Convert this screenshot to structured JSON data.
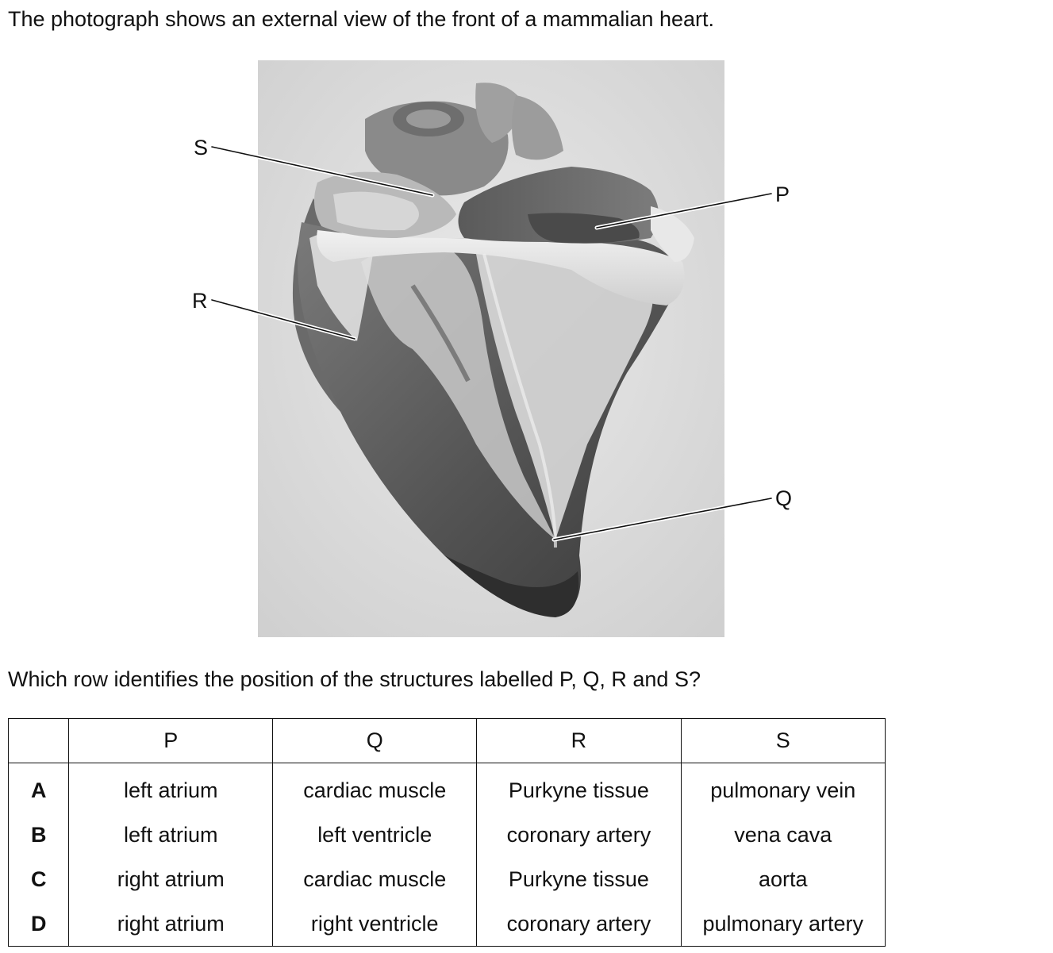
{
  "intro_text": "The photograph shows an external view of the front of a mammalian heart.",
  "figure": {
    "labels": {
      "P": "P",
      "Q": "Q",
      "R": "R",
      "S": "S"
    }
  },
  "question_text": "Which row identifies the position of the structures labelled P, Q, R and S?",
  "table": {
    "columns": [
      "P",
      "Q",
      "R",
      "S"
    ],
    "rows": [
      {
        "letter": "A",
        "P": "left atrium",
        "Q": "cardiac muscle",
        "R": "Purkyne tissue",
        "S": "pulmonary vein"
      },
      {
        "letter": "B",
        "P": "left atrium",
        "Q": "left ventricle",
        "R": "coronary artery",
        "S": "vena cava"
      },
      {
        "letter": "C",
        "P": "right atrium",
        "Q": "cardiac muscle",
        "R": "Purkyne tissue",
        "S": "aorta"
      },
      {
        "letter": "D",
        "P": "right atrium",
        "Q": "right ventricle",
        "R": "coronary artery",
        "S": "pulmonary artery"
      }
    ]
  }
}
